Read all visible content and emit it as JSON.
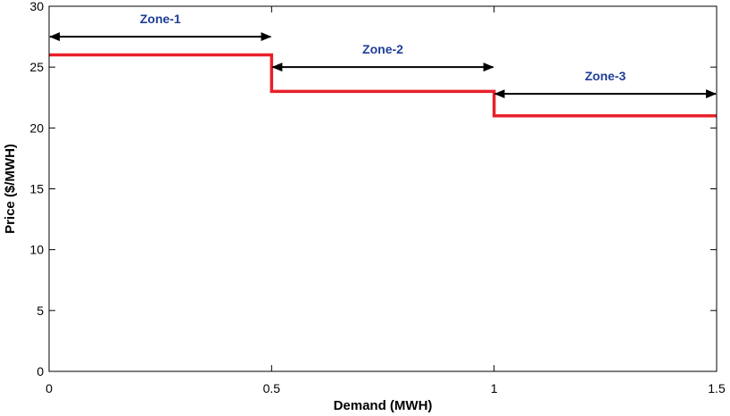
{
  "chart_data": {
    "type": "line",
    "style": "step",
    "xlabel": "Demand (MWH)",
    "ylabel": "Price ($/MWH)",
    "xlim": [
      0,
      1.5
    ],
    "ylim": [
      0,
      30
    ],
    "xticks": [
      0,
      0.5,
      1,
      1.5
    ],
    "xtick_labels": [
      "0",
      "0.5",
      "1",
      "1.5"
    ],
    "yticks": [
      0,
      5,
      10,
      15,
      20,
      25,
      30
    ],
    "ytick_labels": [
      "0",
      "5",
      "10",
      "15",
      "20",
      "25",
      "30"
    ],
    "grid": false,
    "series": [
      {
        "color": "#e8202a",
        "points": [
          [
            0,
            26
          ],
          [
            0.5,
            26
          ],
          [
            0.5,
            23
          ],
          [
            1,
            23
          ],
          [
            1,
            21
          ],
          [
            1.5,
            21
          ]
        ]
      }
    ],
    "annotations": [
      {
        "text": "Zone-1",
        "x_start": 0,
        "x_end": 0.5,
        "y": 27.5
      },
      {
        "text": "Zone-2",
        "x_start": 0.5,
        "x_end": 1,
        "y": 25
      },
      {
        "text": "Zone-3",
        "x_start": 1,
        "x_end": 1.5,
        "y": 22.8
      }
    ],
    "annotation_text_color": "#1f3f97",
    "annotation_arrow_color": "#000000"
  }
}
